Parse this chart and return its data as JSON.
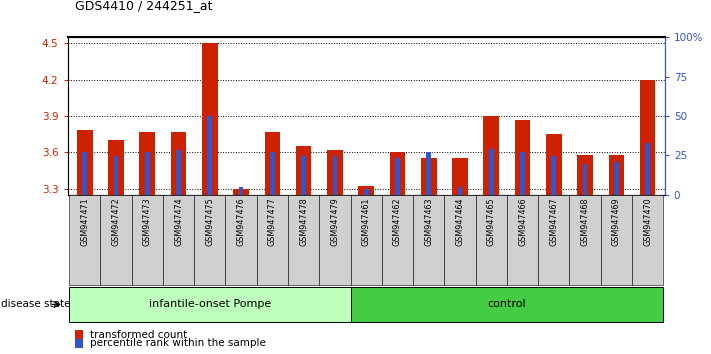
{
  "title": "GDS4410 / 244251_at",
  "samples": [
    "GSM947471",
    "GSM947472",
    "GSM947473",
    "GSM947474",
    "GSM947475",
    "GSM947476",
    "GSM947477",
    "GSM947478",
    "GSM947479",
    "GSM947461",
    "GSM947462",
    "GSM947463",
    "GSM947464",
    "GSM947465",
    "GSM947466",
    "GSM947467",
    "GSM947468",
    "GSM947469",
    "GSM947470"
  ],
  "red_values": [
    3.78,
    3.7,
    3.77,
    3.77,
    4.5,
    3.3,
    3.77,
    3.65,
    3.62,
    3.32,
    3.6,
    3.55,
    3.55,
    3.9,
    3.87,
    3.75,
    3.58,
    3.58,
    4.2
  ],
  "blue_values": [
    3.6,
    3.57,
    3.6,
    3.62,
    3.9,
    3.31,
    3.6,
    3.57,
    3.57,
    3.3,
    3.55,
    3.6,
    3.31,
    3.63,
    3.6,
    3.57,
    3.5,
    3.52,
    3.68
  ],
  "groups": [
    {
      "label": "infantile-onset Pompe",
      "start": 0,
      "end": 9,
      "color": "#bbffbb"
    },
    {
      "label": "control",
      "start": 9,
      "end": 19,
      "color": "#44cc44"
    }
  ],
  "ylim": [
    3.25,
    4.55
  ],
  "yticks": [
    3.3,
    3.6,
    3.9,
    4.2,
    4.5
  ],
  "right_yticks": [
    0,
    25,
    50,
    75,
    100
  ],
  "right_yticklabels": [
    "0",
    "25",
    "50",
    "75",
    "100%"
  ],
  "red_color": "#cc2200",
  "blue_color": "#3355cc",
  "disease_state_label": "disease state",
  "legend_red": "transformed count",
  "legend_blue": "percentile rank within the sample",
  "sample_box_color": "#d0d0d0"
}
